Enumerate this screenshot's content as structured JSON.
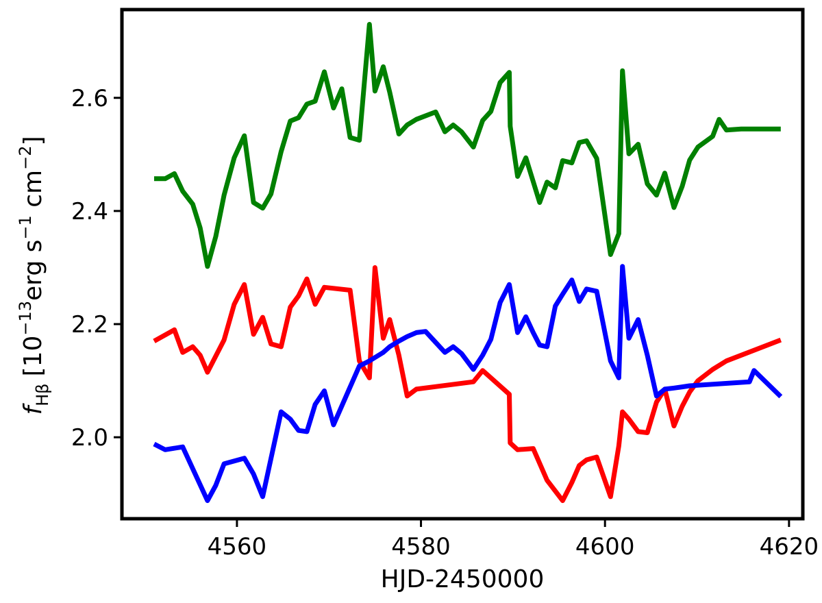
{
  "chart_data": {
    "type": "line",
    "xlabel": "HJD-2450000",
    "ylabel_parts": {
      "f": "f",
      "sub": "H",
      "sub2": "β",
      "bracket_open": "[10",
      "exp1": "−13",
      "erg": "erg s",
      "exp2": "−1",
      "cm": " cm",
      "exp3": "−2",
      "bracket_close": "]"
    },
    "xlim": [
      4547.5,
      4621.5
    ],
    "ylim": [
      1.856,
      2.756
    ],
    "xticks": [
      4560,
      4580,
      4600,
      4620
    ],
    "yticks": [
      2.0,
      2.2,
      2.4,
      2.6
    ],
    "xtick_labels": [
      "4560",
      "4580",
      "4600",
      "4620"
    ],
    "ytick_labels": [
      "2.0",
      "2.2",
      "2.4",
      "2.6"
    ],
    "grid": false,
    "series": [
      {
        "color": "#008000",
        "x": [
          4551,
          4552.2,
          4553.2,
          4554.1,
          4555.2,
          4556,
          4556.8,
          4557.7,
          4558.6,
          4559.7,
          4560.8,
          4561.8,
          4562.8,
          4563.7,
          4564.8,
          4565.8,
          4566.7,
          4567.6,
          4568.5,
          4569.5,
          4570.5,
          4571.4,
          4572.3,
          4573.3,
          4574.4,
          4575,
          4575.9,
          4576.6,
          4577.6,
          4578.5,
          4579.5,
          4581.6,
          4582.6,
          4583.5,
          4584.4,
          4585.7,
          4586.7,
          4587.6,
          4588.6,
          4589.6,
          4589.7,
          4590.5,
          4591.4,
          4592.2,
          4592.9,
          4593.7,
          4594.6,
          4595.4,
          4596.4,
          4597.2,
          4598,
          4599.1,
          4600.6,
          4601.5,
          4601.9,
          4602.6,
          4603.6,
          4604.6,
          4605.6,
          4606.5,
          4607.5,
          4608.4,
          4609.2,
          4610.1,
          4611.7,
          4612.4,
          4613.2,
          4614.8,
          4615.7,
          4619.1
        ],
        "y": [
          2.457,
          2.457,
          2.466,
          2.435,
          2.412,
          2.37,
          2.302,
          2.355,
          2.428,
          2.494,
          2.533,
          2.415,
          2.405,
          2.43,
          2.505,
          2.559,
          2.565,
          2.589,
          2.594,
          2.646,
          2.582,
          2.616,
          2.53,
          2.525,
          2.73,
          2.612,
          2.655,
          2.61,
          2.536,
          2.552,
          2.562,
          2.575,
          2.54,
          2.552,
          2.54,
          2.513,
          2.56,
          2.576,
          2.627,
          2.645,
          2.55,
          2.461,
          2.494,
          2.452,
          2.415,
          2.451,
          2.441,
          2.489,
          2.485,
          2.521,
          2.524,
          2.493,
          2.323,
          2.36,
          2.648,
          2.501,
          2.518,
          2.448,
          2.428,
          2.467,
          2.406,
          2.444,
          2.49,
          2.513,
          2.532,
          2.562,
          2.543,
          2.545,
          2.545,
          2.545
        ]
      },
      {
        "color": "#ff0000",
        "x": [
          4551,
          4553.2,
          4554.1,
          4555.2,
          4556,
          4556.8,
          4558.6,
          4559.7,
          4560.8,
          4561.8,
          4562.8,
          4563.7,
          4564.8,
          4565.8,
          4566.7,
          4567.6,
          4568.5,
          4569.5,
          4572.3,
          4573.3,
          4574.4,
          4575,
          4575.9,
          4576.6,
          4577.6,
          4578.5,
          4579.5,
          4585.7,
          4586.7,
          4589.6,
          4589.7,
          4590.5,
          4592.2,
          4593.7,
          4595.4,
          4596.4,
          4597.2,
          4598,
          4599.1,
          4600.6,
          4601.5,
          4601.9,
          4602.6,
          4603.6,
          4604.6,
          4605.6,
          4606.5,
          4607.5,
          4608.4,
          4609.2,
          4610.1,
          4611.7,
          4613.2,
          4619.1
        ],
        "y": [
          2.17,
          2.19,
          2.15,
          2.16,
          2.145,
          2.115,
          2.172,
          2.235,
          2.27,
          2.182,
          2.212,
          2.165,
          2.16,
          2.23,
          2.25,
          2.28,
          2.235,
          2.265,
          2.26,
          2.135,
          2.105,
          2.3,
          2.175,
          2.208,
          2.145,
          2.073,
          2.085,
          2.098,
          2.118,
          2.076,
          1.99,
          1.978,
          1.98,
          1.924,
          1.888,
          1.92,
          1.95,
          1.96,
          1.965,
          1.895,
          1.985,
          2.045,
          2.032,
          2.01,
          2.008,
          2.062,
          2.085,
          2.02,
          2.055,
          2.08,
          2.1,
          2.12,
          2.135,
          2.172
        ]
      },
      {
        "color": "#0000ff",
        "x": [
          4551,
          4552.2,
          4554.1,
          4556.8,
          4557.7,
          4558.6,
          4560.8,
          4561.8,
          4562.8,
          4564.8,
          4565.8,
          4566.7,
          4567.6,
          4568.5,
          4569.5,
          4570.5,
          4573.3,
          4574.4,
          4575.9,
          4576.6,
          4577.6,
          4578.5,
          4579.5,
          4580.5,
          4582.6,
          4583.5,
          4584.4,
          4585.7,
          4586.7,
          4587.6,
          4588.6,
          4589.6,
          4590.5,
          4591.4,
          4592.2,
          4592.9,
          4593.7,
          4594.6,
          4595.4,
          4596.4,
          4597.2,
          4598,
          4599.1,
          4600.6,
          4601.5,
          4601.9,
          4602.6,
          4603.6,
          4604.6,
          4605.6,
          4606.5,
          4607.5,
          4608.4,
          4609.2,
          4615.7,
          4616.2,
          4619.1
        ],
        "y": [
          1.988,
          1.978,
          1.983,
          1.888,
          1.915,
          1.953,
          1.963,
          1.935,
          1.895,
          2.045,
          2.032,
          2.012,
          2.01,
          2.058,
          2.082,
          2.022,
          2.126,
          2.135,
          2.15,
          2.16,
          2.17,
          2.178,
          2.185,
          2.187,
          2.15,
          2.16,
          2.148,
          2.12,
          2.145,
          2.173,
          2.238,
          2.27,
          2.185,
          2.213,
          2.185,
          2.163,
          2.16,
          2.232,
          2.253,
          2.278,
          2.24,
          2.262,
          2.258,
          2.135,
          2.105,
          2.302,
          2.175,
          2.208,
          2.145,
          2.073,
          2.085,
          2.087,
          2.089,
          2.091,
          2.098,
          2.118,
          2.072
        ]
      }
    ]
  }
}
